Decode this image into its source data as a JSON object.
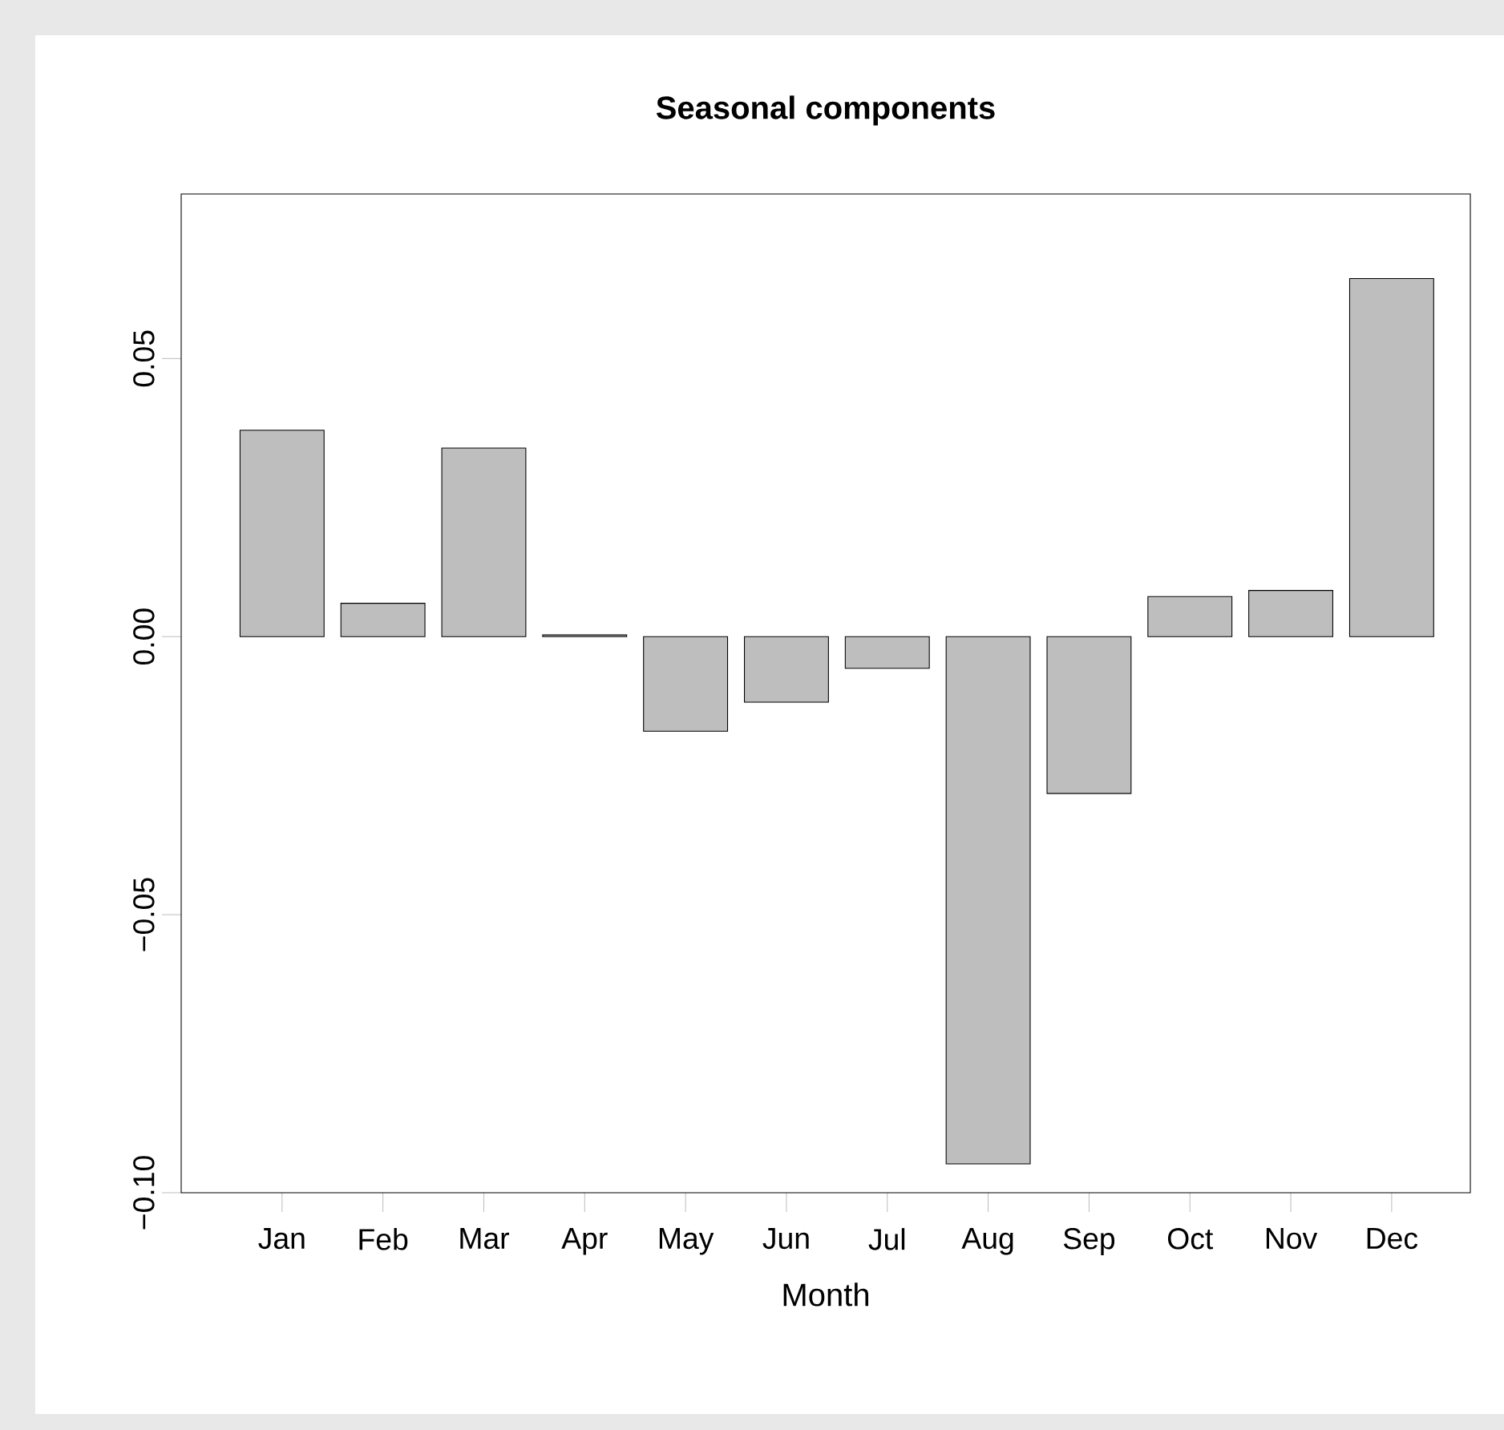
{
  "chart_data": {
    "type": "bar",
    "title": "Seasonal components",
    "xlabel": "Month",
    "categories": [
      "Jan",
      "Feb",
      "Mar",
      "Apr",
      "May",
      "Jun",
      "Jul",
      "Aug",
      "Sep",
      "Oct",
      "Nov",
      "Dec"
    ],
    "values": [
      0.0371,
      0.006,
      0.0339,
      0.0003,
      -0.017,
      -0.0118,
      -0.0057,
      -0.0948,
      -0.0282,
      0.0072,
      0.0083,
      0.0644
    ],
    "color": "#bebebe",
    "ylim": [
      -0.1,
      0.0796
    ],
    "yticks": [
      {
        "value": -0.1,
        "label": "−0.10"
      },
      {
        "value": -0.05,
        "label": "−0.05"
      },
      {
        "value": 0,
        "label": "0.00"
      },
      {
        "value": 0.05,
        "label": "0.05"
      }
    ]
  }
}
